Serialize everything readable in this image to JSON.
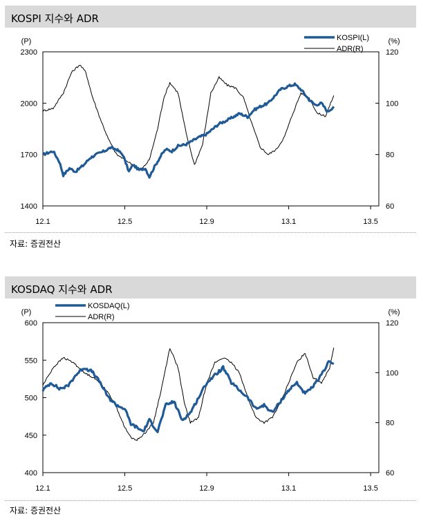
{
  "chart_data": [
    {
      "type": "line",
      "title": "KOSPI 지수와 ADR",
      "source": "자료: 증권전산",
      "left_unit": "(P)",
      "right_unit": "(%)",
      "x_ticks": [
        "12.1",
        "12.5",
        "12.9",
        "13.1",
        "13.5"
      ],
      "xlim": [
        0,
        16.4
      ],
      "x_tick_positions": [
        0,
        4,
        8,
        12,
        16
      ],
      "left_ylim": [
        1400,
        2300
      ],
      "left_ticks": [
        1400,
        1700,
        2000,
        2300
      ],
      "right_ylim": [
        60,
        120
      ],
      "right_ticks": [
        60,
        80,
        100,
        120
      ],
      "legend_position": "top-right",
      "series": [
        {
          "name": "KOSPI(L)",
          "axis": "left",
          "style": "thick",
          "color": "#1f5a96",
          "x": [
            0,
            0.5,
            0.8,
            1.0,
            1.3,
            1.6,
            2.0,
            2.3,
            2.6,
            3.0,
            3.3,
            3.6,
            3.9,
            4.2,
            4.4,
            4.7,
            5.0,
            5.2,
            5.5,
            5.8,
            6.0,
            6.3,
            6.6,
            7.0,
            7.3,
            7.6,
            8.0,
            8.3,
            8.6,
            9.0,
            9.3,
            9.6,
            10.0,
            10.3,
            10.6,
            11.0,
            11.3,
            11.6,
            12.0,
            12.3,
            12.6,
            13.0,
            13.3,
            13.6,
            13.9,
            14.2
          ],
          "values": [
            1700,
            1720,
            1660,
            1580,
            1620,
            1600,
            1640,
            1680,
            1700,
            1720,
            1740,
            1730,
            1700,
            1600,
            1640,
            1610,
            1620,
            1570,
            1640,
            1700,
            1730,
            1720,
            1750,
            1760,
            1780,
            1800,
            1820,
            1850,
            1880,
            1900,
            1920,
            1940,
            1920,
            1960,
            1980,
            2000,
            2040,
            2080,
            2100,
            2110,
            2080,
            2020,
            1990,
            2000,
            1950,
            1980
          ]
        },
        {
          "name": "ADR(R)",
          "axis": "right",
          "style": "thin",
          "color": "#000000",
          "x": [
            0,
            0.5,
            1.0,
            1.4,
            1.8,
            2.1,
            2.4,
            2.8,
            3.2,
            3.6,
            4.0,
            4.4,
            4.8,
            5.2,
            5.6,
            5.9,
            6.2,
            6.6,
            7.0,
            7.4,
            7.8,
            8.2,
            8.6,
            9.0,
            9.4,
            9.8,
            10.2,
            10.6,
            11.0,
            11.4,
            11.8,
            12.2,
            12.6,
            13.0,
            13.4,
            13.8,
            14.2
          ],
          "values": [
            97,
            98,
            104,
            112,
            115,
            112,
            103,
            94,
            86,
            80,
            78,
            76,
            74,
            78,
            90,
            102,
            108,
            104,
            88,
            76,
            84,
            104,
            110,
            107,
            106,
            102,
            92,
            83,
            80,
            82,
            87,
            96,
            104,
            102,
            96,
            95,
            103
          ]
        }
      ]
    },
    {
      "type": "line",
      "title": "KOSDAQ 지수와 ADR",
      "source": "자료: 증권전산",
      "left_unit": "(P)",
      "right_unit": "(%)",
      "x_ticks": [
        "12.1",
        "12.5",
        "12.9",
        "13.1",
        "13.5"
      ],
      "xlim": [
        0,
        16.4
      ],
      "x_tick_positions": [
        0,
        4,
        8,
        12,
        16
      ],
      "left_ylim": [
        400,
        600
      ],
      "left_ticks": [
        400,
        450,
        500,
        550,
        600
      ],
      "right_ylim": [
        60,
        120
      ],
      "right_ticks": [
        60,
        80,
        100,
        120
      ],
      "legend_position": "top-left",
      "series": [
        {
          "name": "KOSDAQ(L)",
          "axis": "left",
          "style": "thick",
          "color": "#1f5a96",
          "x": [
            0,
            0.4,
            0.8,
            1.2,
            1.6,
            2.0,
            2.4,
            2.8,
            3.2,
            3.6,
            4.0,
            4.3,
            4.6,
            4.9,
            5.2,
            5.6,
            6.0,
            6.4,
            6.8,
            7.2,
            7.6,
            8.0,
            8.4,
            8.8,
            9.2,
            9.6,
            10.0,
            10.4,
            10.8,
            11.2,
            11.6,
            12.0,
            12.4,
            12.8,
            13.2,
            13.6,
            14.0,
            14.2
          ],
          "values": [
            510,
            520,
            512,
            515,
            530,
            540,
            535,
            520,
            500,
            490,
            485,
            465,
            460,
            455,
            470,
            455,
            490,
            495,
            470,
            480,
            500,
            520,
            530,
            540,
            520,
            510,
            500,
            485,
            490,
            480,
            495,
            510,
            520,
            505,
            515,
            530,
            550,
            545
          ]
        },
        {
          "name": "ADR(R)",
          "axis": "right",
          "style": "thin",
          "color": "#000000",
          "x": [
            0,
            0.5,
            1.0,
            1.5,
            2.0,
            2.5,
            3.0,
            3.5,
            4.0,
            4.3,
            4.6,
            5.0,
            5.4,
            5.8,
            6.2,
            6.6,
            6.9,
            7.2,
            7.6,
            8.0,
            8.4,
            8.8,
            9.2,
            9.6,
            10.0,
            10.4,
            10.8,
            11.2,
            11.6,
            12.0,
            12.4,
            12.8,
            13.2,
            13.6,
            14.0,
            14.2
          ],
          "values": [
            95,
            102,
            106,
            104,
            100,
            98,
            94,
            88,
            78,
            74,
            73,
            76,
            80,
            94,
            110,
            102,
            88,
            80,
            82,
            96,
            104,
            106,
            104,
            100,
            90,
            82,
            80,
            82,
            88,
            96,
            104,
            108,
            98,
            96,
            102,
            110
          ]
        }
      ]
    }
  ]
}
